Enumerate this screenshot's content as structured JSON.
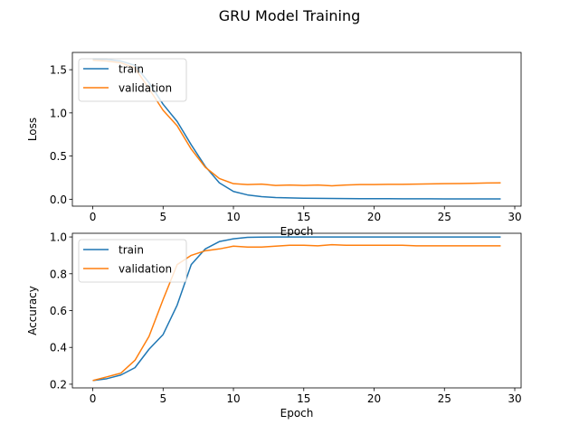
{
  "title": "GRU Model Training",
  "chart_data": [
    {
      "type": "line",
      "ylabel": "Loss",
      "xlabel": "Epoch",
      "xlim": [
        -1.45,
        30.45
      ],
      "ylim": [
        -0.08,
        1.7
      ],
      "xticks": [
        0,
        5,
        10,
        15,
        20,
        25,
        30
      ],
      "yticks": [
        0.0,
        0.5,
        1.0,
        1.5
      ],
      "ytick_labels": [
        "0.0",
        "0.5",
        "1.0",
        "1.5"
      ],
      "legend": "top-left",
      "grid": false,
      "x": [
        0,
        1,
        2,
        3,
        4,
        5,
        6,
        7,
        8,
        9,
        10,
        11,
        12,
        13,
        14,
        15,
        16,
        17,
        18,
        19,
        20,
        21,
        22,
        23,
        24,
        25,
        26,
        27,
        28,
        29
      ],
      "series": [
        {
          "name": "train",
          "color": "#1f77b4",
          "values": [
            1.62,
            1.62,
            1.6,
            1.55,
            1.35,
            1.1,
            0.9,
            0.63,
            0.38,
            0.19,
            0.09,
            0.05,
            0.03,
            0.02,
            0.015,
            0.012,
            0.01,
            0.009,
            0.008,
            0.007,
            0.006,
            0.006,
            0.005,
            0.005,
            0.005,
            0.004,
            0.004,
            0.004,
            0.004,
            0.004
          ]
        },
        {
          "name": "validation",
          "color": "#ff7f0e",
          "values": [
            1.61,
            1.6,
            1.58,
            1.52,
            1.28,
            1.03,
            0.85,
            0.58,
            0.37,
            0.24,
            0.18,
            0.17,
            0.175,
            0.16,
            0.165,
            0.16,
            0.165,
            0.155,
            0.165,
            0.17,
            0.17,
            0.172,
            0.172,
            0.175,
            0.178,
            0.18,
            0.182,
            0.185,
            0.188,
            0.19
          ]
        }
      ]
    },
    {
      "type": "line",
      "ylabel": "Accuracy",
      "xlabel": "Epoch",
      "xlim": [
        -1.45,
        30.45
      ],
      "ylim": [
        0.18,
        1.02
      ],
      "xticks": [
        0,
        5,
        10,
        15,
        20,
        25,
        30
      ],
      "yticks": [
        0.2,
        0.4,
        0.6,
        0.8,
        1.0
      ],
      "ytick_labels": [
        "0.2",
        "0.4",
        "0.6",
        "0.8",
        "1.0"
      ],
      "legend": "top-left",
      "grid": false,
      "x": [
        0,
        1,
        2,
        3,
        4,
        5,
        6,
        7,
        8,
        9,
        10,
        11,
        12,
        13,
        14,
        15,
        16,
        17,
        18,
        19,
        20,
        21,
        22,
        23,
        24,
        25,
        26,
        27,
        28,
        29
      ],
      "series": [
        {
          "name": "train",
          "color": "#1f77b4",
          "values": [
            0.22,
            0.23,
            0.25,
            0.29,
            0.39,
            0.47,
            0.63,
            0.85,
            0.935,
            0.975,
            0.99,
            0.998,
            0.999,
            1.0,
            1.0,
            1.0,
            1.0,
            1.0,
            1.0,
            1.0,
            1.0,
            1.0,
            1.0,
            1.0,
            1.0,
            1.0,
            1.0,
            1.0,
            1.0,
            1.0
          ]
        },
        {
          "name": "validation",
          "color": "#ff7f0e",
          "values": [
            0.22,
            0.24,
            0.26,
            0.33,
            0.46,
            0.66,
            0.85,
            0.9,
            0.925,
            0.935,
            0.95,
            0.945,
            0.945,
            0.95,
            0.955,
            0.955,
            0.952,
            0.958,
            0.955,
            0.955,
            0.955,
            0.955,
            0.955,
            0.952,
            0.952,
            0.952,
            0.952,
            0.952,
            0.952,
            0.952
          ]
        }
      ]
    }
  ]
}
